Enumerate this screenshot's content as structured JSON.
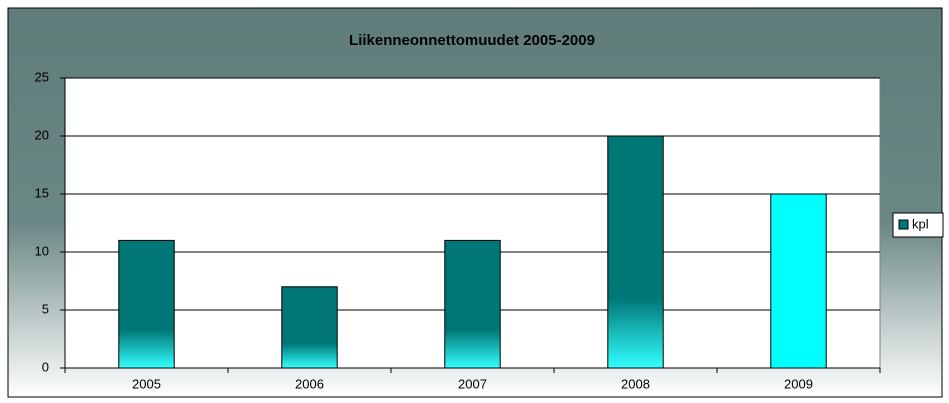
{
  "chart_data": {
    "type": "bar",
    "title": "Liikenneonnettomuudet 2005-2009",
    "categories": [
      "2005",
      "2006",
      "2007",
      "2008",
      "2009"
    ],
    "series": [
      {
        "name": "kpl",
        "color": "#007777",
        "values": [
          11,
          7,
          11,
          20,
          15
        ]
      }
    ],
    "colors": [
      "#007777",
      "#007777",
      "#007777",
      "#007777",
      "#00ffff"
    ],
    "ylim": [
      0,
      25
    ],
    "yticks": [
      0,
      5,
      10,
      15,
      20,
      25
    ],
    "grid": true,
    "legend": "right"
  }
}
